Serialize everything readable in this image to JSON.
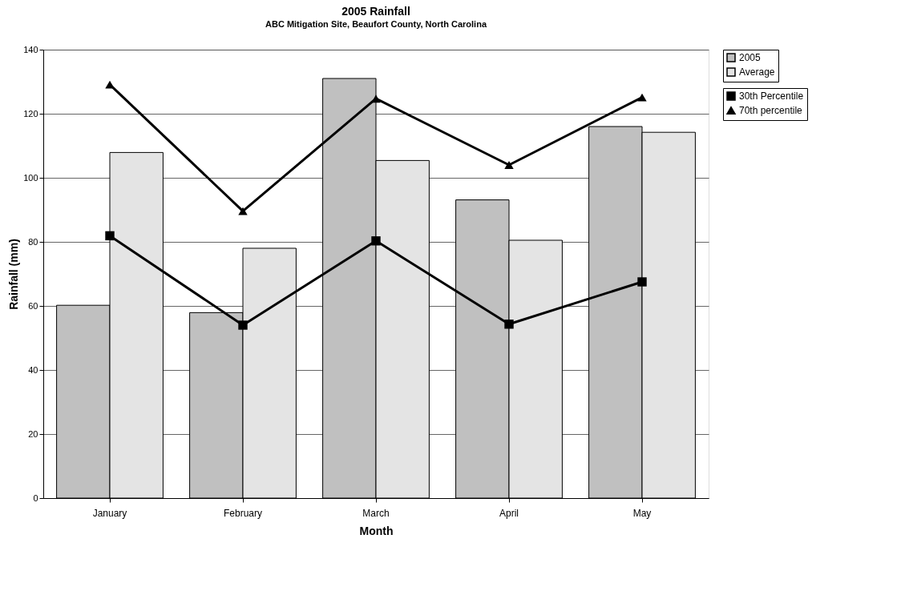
{
  "chart_data": {
    "type": "bar",
    "title": "2005 Rainfall",
    "subtitle": "ABC Mitigation Site, Beaufort County, North Carolina",
    "xlabel": "Month",
    "ylabel": "Rainfall (mm)",
    "categories": [
      "January",
      "February",
      "March",
      "April",
      "May"
    ],
    "series": [
      {
        "name": "2005",
        "color": "#c0c0c0",
        "values": [
          60.2,
          57.9,
          131.0,
          93.1,
          116.0
        ]
      },
      {
        "name": "Average",
        "color": "#e4e4e4",
        "values": [
          107.9,
          78.0,
          105.4,
          80.5,
          114.2
        ]
      },
      {
        "name": "30th Percentile",
        "type": "line",
        "color": "#000000",
        "marker": "square",
        "values": [
          81.9,
          54.0,
          80.3,
          54.3,
          67.5
        ]
      },
      {
        "name": "70th percentile",
        "type": "line",
        "color": "#000000",
        "marker": "triangle",
        "values": [
          129.1,
          89.6,
          124.7,
          104.0,
          125.1
        ]
      }
    ],
    "ylim": [
      0,
      140
    ],
    "yticks": [
      0,
      20,
      40,
      60,
      80,
      100,
      120,
      140
    ],
    "grid": "y",
    "legend": "right",
    "line_style": "solid"
  }
}
